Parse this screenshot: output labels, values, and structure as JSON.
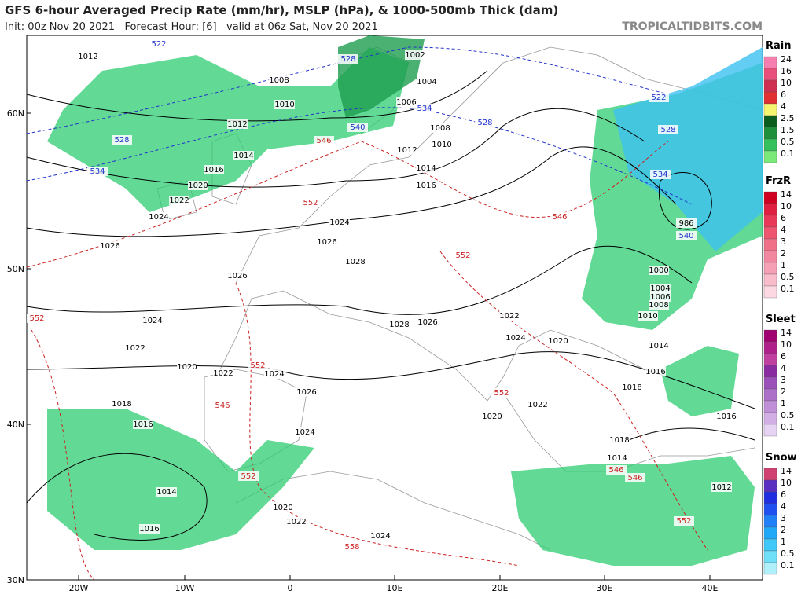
{
  "header": {
    "title": "GFS 6-hour Averaged Precip Rate (mm/hr), MSLP (hPa), & 1000-500mb Thick (dam)",
    "subtitle": "Init: 00z Nov 20 2021   Forecast Hour: [6]   valid at 06z Sat, Nov 20 2021",
    "site": "TROPICALTIDBITS.COM"
  },
  "map": {
    "lat_labels": [
      "60N",
      "50N",
      "40N",
      "30N"
    ],
    "lon_labels": [
      "20W",
      "10W",
      "0",
      "10E",
      "20E",
      "30E",
      "40E"
    ],
    "isobar_labels": [
      "1012",
      "1008",
      "1010",
      "1012",
      "1014",
      "1016",
      "1020",
      "1022",
      "1024",
      "1026",
      "1026",
      "1024",
      "1022",
      "1020",
      "1022",
      "1024",
      "1026",
      "1024",
      "1018",
      "1016",
      "1014",
      "1016",
      "1020",
      "1022",
      "1024",
      "1024",
      "1026",
      "1028",
      "1028",
      "1026",
      "1022",
      "1024",
      "1020",
      "1022",
      "1020",
      "1018",
      "1018",
      "1014",
      "1016",
      "1012",
      "1016",
      "1014",
      "1010",
      "1008",
      "1006",
      "1004",
      "1000",
      "986",
      "1004",
      "1006",
      "1008",
      "1010",
      "1012",
      "1014",
      "1016",
      "1002"
    ],
    "blue_thickness_labels": [
      "522",
      "528",
      "534",
      "540",
      "528",
      "522",
      "528",
      "534",
      "540",
      "528",
      "534"
    ],
    "red_thickness_labels": [
      "546",
      "552",
      "552",
      "546",
      "552",
      "552",
      "546",
      "552",
      "552",
      "546",
      "552",
      "558",
      "546"
    ]
  },
  "legend": [
    {
      "title": "Rain",
      "ticks": [
        "24",
        "16",
        "10",
        "6",
        "4",
        "2.5",
        "1.5",
        "0.5",
        "0.1"
      ]
    },
    {
      "title": "FrzR",
      "ticks": [
        "14",
        "10",
        "6",
        "4",
        "3",
        "2",
        "1",
        "0.5",
        "0.1"
      ]
    },
    {
      "title": "Sleet",
      "ticks": [
        "14",
        "10",
        "6",
        "4",
        "3",
        "2",
        "1",
        "0.5",
        "0.1"
      ]
    },
    {
      "title": "Snow",
      "ticks": [
        "14",
        "10",
        "6",
        "4",
        "3",
        "2",
        "1",
        "0.5",
        "0.1"
      ]
    }
  ]
}
